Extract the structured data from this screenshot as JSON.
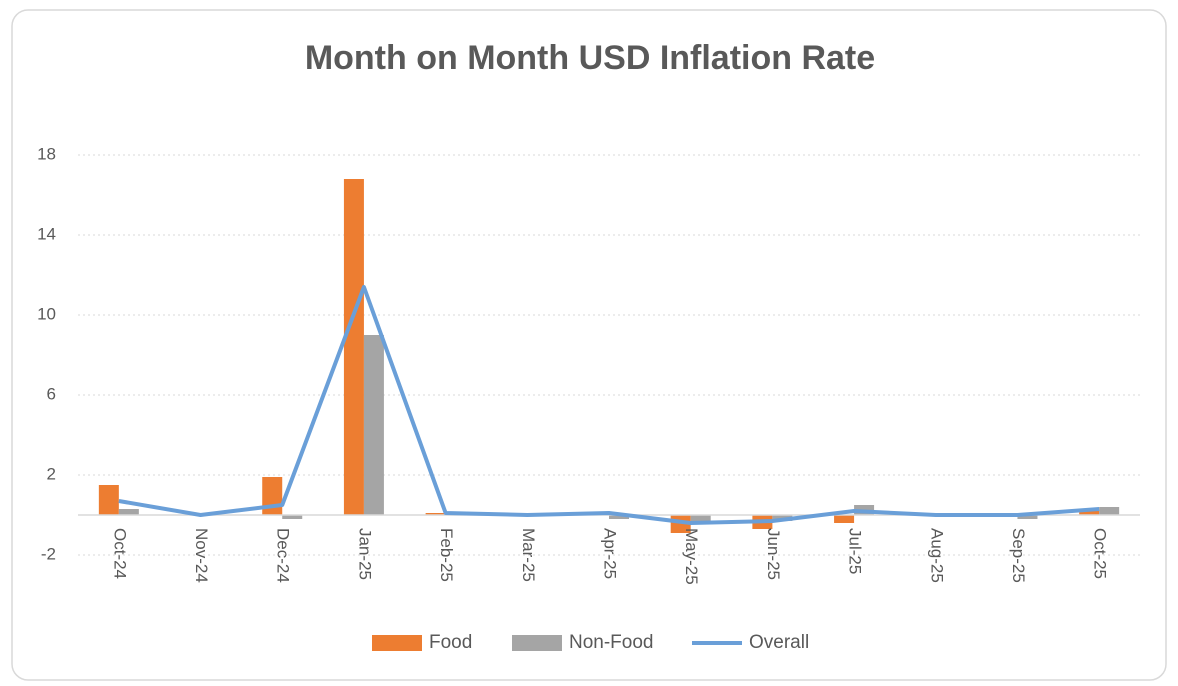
{
  "chart_data": {
    "type": "bar",
    "title": "Month on Month USD Inflation Rate",
    "categories": [
      "Oct-24",
      "Nov-24",
      "Dec-24",
      "Jan-25",
      "Feb-25",
      "Mar-25",
      "Apr-25",
      "May-25",
      "Jun-25",
      "Jul-25",
      "Aug-25",
      "Sep-25",
      "Oct-25"
    ],
    "series": [
      {
        "name": "Food",
        "type": "bar",
        "color": "#ed7d31",
        "values": [
          1.5,
          0,
          1.9,
          16.8,
          0.1,
          0,
          0.1,
          -0.9,
          -0.7,
          -0.4,
          0,
          0,
          0.2
        ]
      },
      {
        "name": "Non-Food",
        "type": "bar",
        "color": "#a5a5a5",
        "values": [
          0.3,
          0,
          -0.2,
          9.0,
          0.1,
          0,
          -0.2,
          -0.3,
          -0.3,
          0.5,
          0,
          -0.2,
          0.4
        ]
      },
      {
        "name": "Overall",
        "type": "line",
        "color": "#6a9fd8",
        "values": [
          0.7,
          0,
          0.5,
          11.4,
          0.1,
          0,
          0.1,
          -0.4,
          -0.3,
          0.2,
          0,
          0,
          0.3
        ]
      }
    ],
    "ylim": [
      -2,
      18
    ],
    "yticks": [
      -2,
      2,
      6,
      10,
      14,
      18
    ],
    "grid": true,
    "legend": "bottom"
  }
}
